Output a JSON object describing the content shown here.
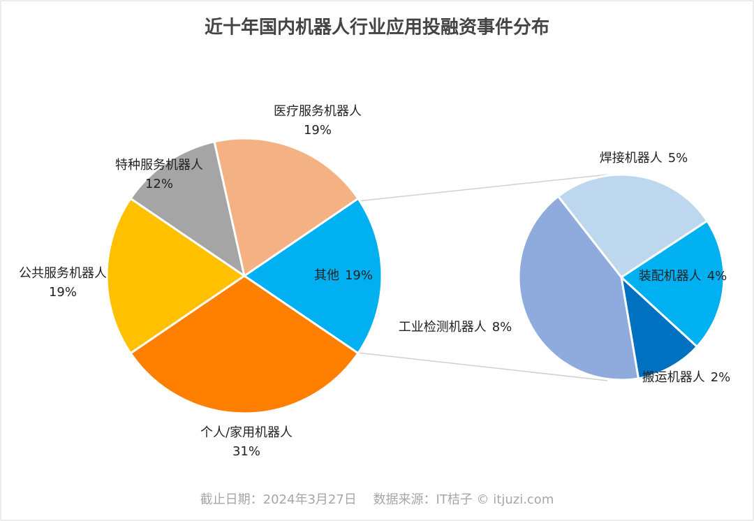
{
  "chart_data": [
    {
      "type": "pie",
      "title": "近十年国内机器人行业应用投融资事件分布",
      "categories": [
        "其他",
        "个人/家用机器人",
        "公共服务机器人",
        "特种服务机器人",
        "医疗服务机器人"
      ],
      "values": [
        19,
        31,
        19,
        12,
        19
      ],
      "value_labels": [
        "19%",
        "31%",
        "19%",
        "12%",
        "19%"
      ],
      "colors": [
        "#00b0f0",
        "#ff7f00",
        "#ffc000",
        "#a5a5a5",
        "#f4b183"
      ],
      "footnote": "截止日期：2024年3月27日　 数据来源：IT桔子 © itjuzi.com"
    },
    {
      "type": "pie",
      "categories": [
        "焊接机器人",
        "装配机器人",
        "搬运机器人",
        "工业检测机器人"
      ],
      "values": [
        5,
        4,
        2,
        8
      ],
      "value_labels": [
        "5%",
        "4%",
        "2%",
        "8%"
      ],
      "colors": [
        "#bdd7ee",
        "#00b0f0",
        "#0070c0",
        "#8faadc"
      ]
    }
  ]
}
